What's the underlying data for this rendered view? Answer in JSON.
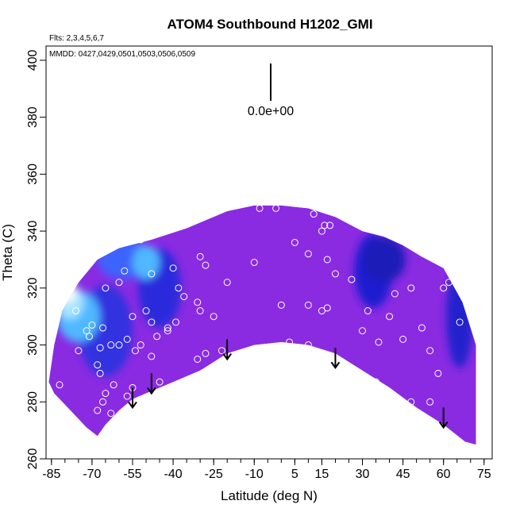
{
  "chart_data": {
    "type": "heatmap",
    "title": "ATOM4 Southbound H1202_GMI",
    "annotations": {
      "flights": "Flts: 2,3,4,5,6,7",
      "dates": "MMDD: 0427,0429,0501,0503,0506,0509",
      "scale_label": "0.0e+00"
    },
    "xlabel": "Latitude (deg N)",
    "ylabel": "Theta (C)",
    "xlim": [
      -87,
      78
    ],
    "ylim": [
      260,
      405
    ],
    "x_ticks": [
      -85,
      -70,
      -55,
      -40,
      -25,
      -10,
      5,
      15,
      30,
      45,
      60,
      75
    ],
    "x_tick_labels": [
      "-85",
      "-70",
      "-55",
      "-40",
      "-25",
      "-10",
      "5",
      "15",
      "30",
      "45",
      "60",
      "75"
    ],
    "y_ticks": [
      260,
      280,
      300,
      320,
      340,
      360,
      380,
      400
    ],
    "y_tick_labels": [
      "260",
      "280",
      "300",
      "320",
      "340",
      "360",
      "380",
      "400"
    ],
    "colors": {
      "background_field": "#8a2be2",
      "dark_band": "#1f1fd0",
      "light_blue": "#7fd0ff",
      "cyan": "#4fb8ff",
      "white_core": "#ffffff",
      "yellow": "#ffe97a",
      "point_outline": "#ffffff",
      "arrow": "#000000"
    },
    "domain_boundary": {
      "top": [
        [
          -86,
          287
        ],
        [
          -84,
          300
        ],
        [
          -81,
          312
        ],
        [
          -75,
          322
        ],
        [
          -68,
          330
        ],
        [
          -60,
          334
        ],
        [
          -48,
          337
        ],
        [
          -35,
          341
        ],
        [
          -20,
          347
        ],
        [
          -10,
          349
        ],
        [
          0,
          349
        ],
        [
          10,
          348
        ],
        [
          20,
          345
        ],
        [
          30,
          340
        ],
        [
          38,
          338
        ],
        [
          45,
          335
        ],
        [
          52,
          331
        ],
        [
          60,
          327
        ],
        [
          67,
          315
        ],
        [
          72,
          300
        ]
      ],
      "bottom": [
        [
          72,
          265
        ],
        [
          68,
          266
        ],
        [
          60,
          272
        ],
        [
          50,
          278
        ],
        [
          40,
          285
        ],
        [
          30,
          291
        ],
        [
          20,
          297
        ],
        [
          10,
          300
        ],
        [
          0,
          301
        ],
        [
          -10,
          300
        ],
        [
          -20,
          297
        ],
        [
          -30,
          291
        ],
        [
          -40,
          287
        ],
        [
          -50,
          283
        ],
        [
          -55,
          281
        ],
        [
          -60,
          277
        ],
        [
          -65,
          272
        ],
        [
          -68,
          268
        ],
        [
          -72,
          271
        ],
        [
          -78,
          277
        ],
        [
          -84,
          283
        ],
        [
          -86,
          287
        ]
      ]
    },
    "color_features": [
      {
        "name": "dark_band_north",
        "center": [
          34,
          326
        ],
        "radius": [
          7,
          13
        ],
        "color": "#1f1fd0"
      },
      {
        "name": "dark_band_north2",
        "center": [
          38,
          330
        ],
        "radius": [
          8,
          8
        ],
        "color": "#1a1ab8"
      },
      {
        "name": "dark_band_mid",
        "center": [
          -45,
          320
        ],
        "radius": [
          8,
          14
        ],
        "color": "#2a2adc"
      },
      {
        "name": "dark_band_south",
        "center": [
          -65,
          305
        ],
        "radius": [
          10,
          16
        ],
        "color": "#3232e0"
      },
      {
        "name": "dark_edge_north",
        "center": [
          66,
          310
        ],
        "radius": [
          5,
          18
        ],
        "color": "#2020cc"
      },
      {
        "name": "blue_south_upper",
        "center": [
          -58,
          330
        ],
        "radius": [
          10,
          7
        ],
        "color": "#3c64ff"
      },
      {
        "name": "cyan_upper",
        "center": [
          -50,
          329
        ],
        "radius": [
          5,
          6
        ],
        "color": "#4fb8ff"
      },
      {
        "name": "cyan_south",
        "center": [
          -75,
          310
        ],
        "radius": [
          8,
          9
        ],
        "color": "#4fb8ff"
      },
      {
        "name": "light_blue_south",
        "center": [
          -78,
          315
        ],
        "radius": [
          5,
          6
        ],
        "color": "#a8e4ff"
      },
      {
        "name": "white_core",
        "center": [
          -79,
          318
        ],
        "radius": [
          3,
          3
        ],
        "color": "#ffffff"
      },
      {
        "name": "yellow_core",
        "center": [
          -80,
          322
        ],
        "radius": [
          3,
          2.5
        ],
        "color": "#ffe97a"
      }
    ],
    "sample_points": [
      [
        -8,
        348
      ],
      [
        -2,
        348
      ],
      [
        12,
        346
      ],
      [
        16,
        342
      ],
      [
        18,
        342
      ],
      [
        15,
        340
      ],
      [
        5,
        336
      ],
      [
        10,
        332
      ],
      [
        17,
        330
      ],
      [
        20,
        325
      ],
      [
        26,
        323
      ],
      [
        -30,
        331
      ],
      [
        -28,
        328
      ],
      [
        -40,
        327
      ],
      [
        -52,
        337
      ],
      [
        -48,
        325
      ],
      [
        -58,
        326
      ],
      [
        -60,
        322
      ],
      [
        -65,
        320
      ],
      [
        -50,
        312
      ],
      [
        -48,
        308
      ],
      [
        -46,
        303
      ],
      [
        -42,
        305
      ],
      [
        -36,
        317
      ],
      [
        -31,
        315
      ],
      [
        -30,
        312
      ],
      [
        -25,
        310
      ],
      [
        -20,
        322
      ],
      [
        -10,
        329
      ],
      [
        0,
        314
      ],
      [
        10,
        314
      ],
      [
        15,
        312
      ],
      [
        17,
        313
      ],
      [
        3,
        301
      ],
      [
        10,
        300
      ],
      [
        15,
        297
      ],
      [
        -28,
        297
      ],
      [
        -45,
        287
      ],
      [
        -55,
        285
      ],
      [
        -57,
        282
      ],
      [
        -62,
        286
      ],
      [
        -65,
        283
      ],
      [
        -67,
        290
      ],
      [
        -68,
        293
      ],
      [
        -66,
        306
      ],
      [
        -70,
        307
      ],
      [
        -75,
        298
      ],
      [
        -82,
        286
      ],
      [
        -66,
        280
      ],
      [
        -68,
        277
      ],
      [
        -63,
        276
      ],
      [
        -65,
        268
      ],
      [
        -60,
        300
      ],
      [
        -57,
        302
      ],
      [
        -52,
        300
      ],
      [
        -54,
        298
      ],
      [
        30,
        305
      ],
      [
        32,
        312
      ],
      [
        36,
        301
      ],
      [
        40,
        310
      ],
      [
        42,
        318
      ],
      [
        45,
        302
      ],
      [
        48,
        320
      ],
      [
        52,
        306
      ],
      [
        55,
        298
      ],
      [
        58,
        290
      ],
      [
        62,
        322
      ],
      [
        55,
        280
      ],
      [
        48,
        280
      ],
      [
        35,
        287
      ],
      [
        -48,
        296
      ],
      [
        -33,
        288
      ],
      [
        -31,
        295
      ],
      [
        -38,
        320
      ],
      [
        -22,
        298
      ],
      [
        -39,
        308
      ],
      [
        -63,
        300
      ],
      [
        -76,
        312
      ],
      [
        -72,
        305
      ],
      [
        -71,
        303
      ],
      [
        -67,
        299
      ],
      [
        -55,
        310
      ],
      [
        -42,
        306
      ],
      [
        66,
        308
      ],
      [
        60,
        320
      ]
    ],
    "arrows": [
      {
        "x": -55,
        "y_top": 285,
        "y_bottom": 278
      },
      {
        "x": -48,
        "y_top": 290,
        "y_bottom": 283
      },
      {
        "x": -20,
        "y_top": 302,
        "y_bottom": 295
      },
      {
        "x": 20,
        "y_top": 299,
        "y_bottom": 292
      },
      {
        "x": 60,
        "y_top": 278,
        "y_bottom": 271
      }
    ]
  }
}
